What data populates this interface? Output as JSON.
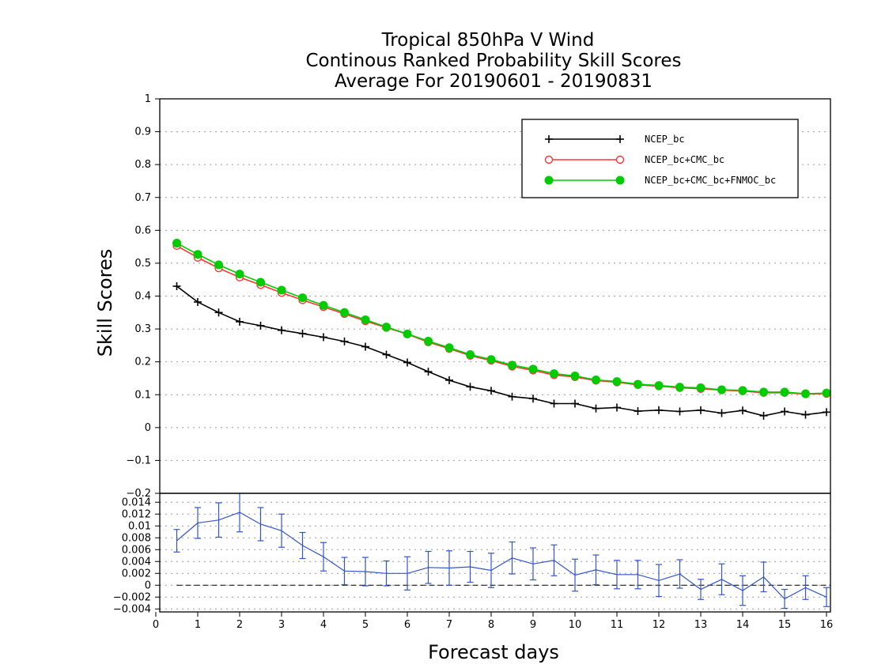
{
  "chart_data": [
    {
      "type": "line",
      "title": [
        "Tropical 850hPa V Wind",
        "Continous Ranked Probability Skill Scores",
        "Average For 20190601 - 20190831"
      ],
      "xlabel": "Forecast days",
      "ylabel": "Skill Scores",
      "xlim": [
        0,
        16
      ],
      "ylim": [
        -0.2,
        1
      ],
      "x_ticks": [
        "0",
        "1",
        "2",
        "3",
        "4",
        "5",
        "6",
        "7",
        "8",
        "9",
        "10",
        "11",
        "12",
        "13",
        "14",
        "15",
        "16"
      ],
      "y_ticks": [
        "−0.2",
        "−0.1",
        "0",
        "0.1",
        "0.2",
        "0.3",
        "0.4",
        "0.5",
        "0.6",
        "0.7",
        "0.8",
        "0.9",
        "1"
      ],
      "grid": true,
      "legend_position": "top-right",
      "x": [
        0.5,
        1,
        1.5,
        2,
        2.5,
        3,
        3.5,
        4,
        4.5,
        5,
        5.5,
        6,
        6.5,
        7,
        7.5,
        8,
        8.5,
        9,
        9.5,
        10,
        10.5,
        11,
        11.5,
        12,
        12.5,
        13,
        13.5,
        14,
        14.5,
        15,
        15.5,
        16
      ],
      "series": [
        {
          "name": "NCEP_bc",
          "color": "#000000",
          "marker": "plus",
          "values": [
            0.43,
            0.382,
            0.35,
            0.322,
            0.31,
            0.296,
            0.286,
            0.275,
            0.262,
            0.246,
            0.222,
            0.198,
            0.17,
            0.144,
            0.124,
            0.112,
            0.094,
            0.088,
            0.073,
            0.073,
            0.058,
            0.061,
            0.05,
            0.053,
            0.049,
            0.053,
            0.044,
            0.052,
            0.036,
            0.049,
            0.039,
            0.047
          ]
        },
        {
          "name": "NCEP_bc+CMC_bc",
          "color": "#ff3333",
          "marker": "open-circle",
          "values": [
            0.553,
            0.517,
            0.485,
            0.457,
            0.434,
            0.41,
            0.388,
            0.367,
            0.346,
            0.324,
            0.304,
            0.284,
            0.26,
            0.24,
            0.219,
            0.204,
            0.186,
            0.174,
            0.16,
            0.154,
            0.143,
            0.138,
            0.13,
            0.126,
            0.121,
            0.118,
            0.114,
            0.111,
            0.106,
            0.106,
            0.102,
            0.103
          ]
        },
        {
          "name": "NCEP_bc+CMC_bc+FNMOC_bc",
          "color": "#00cc00",
          "marker": "filled-circle",
          "values": [
            0.561,
            0.527,
            0.495,
            0.467,
            0.442,
            0.418,
            0.395,
            0.372,
            0.35,
            0.328,
            0.306,
            0.285,
            0.263,
            0.243,
            0.222,
            0.207,
            0.19,
            0.178,
            0.164,
            0.157,
            0.145,
            0.14,
            0.132,
            0.128,
            0.123,
            0.121,
            0.115,
            0.113,
            0.108,
            0.108,
            0.103,
            0.105
          ]
        }
      ]
    },
    {
      "type": "line",
      "xlim": [
        0,
        16
      ],
      "ylim": [
        -0.0045,
        0.0155
      ],
      "x_ticks": [
        "0",
        "1",
        "2",
        "3",
        "4",
        "5",
        "6",
        "7",
        "8",
        "9",
        "10",
        "11",
        "12",
        "13",
        "14",
        "15",
        "16"
      ],
      "y_ticks": [
        "−0.004",
        "−0.002",
        "0",
        "0.002",
        "0.004",
        "0.006",
        "0.008",
        "0.01",
        "0.012",
        "0.014"
      ],
      "grid": true,
      "zero_line": true,
      "x": [
        0.5,
        1,
        1.5,
        2,
        2.5,
        3,
        3.5,
        4,
        4.5,
        5,
        5.5,
        6,
        6.5,
        7,
        7.5,
        8,
        8.5,
        9,
        9.5,
        10,
        10.5,
        11,
        11.5,
        12,
        12.5,
        13,
        13.5,
        14,
        14.5,
        15,
        15.5,
        16
      ],
      "series": [
        {
          "color": "#3355cc",
          "error_bars": true,
          "values": [
            0.0075,
            0.0105,
            0.011,
            0.0123,
            0.0103,
            0.0092,
            0.0067,
            0.0048,
            0.0024,
            0.0023,
            0.002,
            0.002,
            0.003,
            0.0029,
            0.0031,
            0.0025,
            0.0046,
            0.0036,
            0.0042,
            0.0017,
            0.0026,
            0.0018,
            0.0018,
            0.0008,
            0.0019,
            -0.0007,
            0.001,
            -0.0009,
            0.0014,
            -0.0023,
            -0.0004,
            -0.002
          ],
          "error": [
            0.0019,
            0.0026,
            0.0029,
            0.0033,
            0.0028,
            0.0028,
            0.0022,
            0.0024,
            0.0023,
            0.0024,
            0.0021,
            0.0028,
            0.0027,
            0.0029,
            0.0026,
            0.0029,
            0.0027,
            0.0027,
            0.0026,
            0.0027,
            0.0025,
            0.0024,
            0.0024,
            0.0027,
            0.0024,
            0.0017,
            0.0026,
            0.0025,
            0.0025,
            0.0016,
            0.002,
            0.0016
          ]
        }
      ]
    }
  ]
}
